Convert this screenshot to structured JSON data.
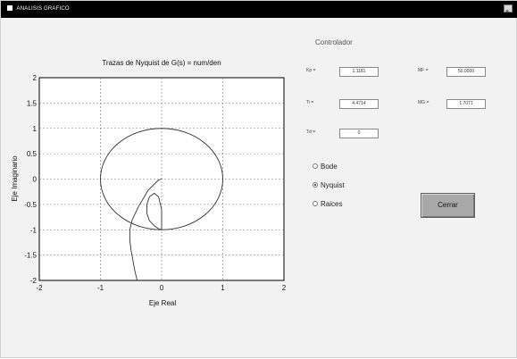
{
  "window": {
    "title": "ANALISIS GRAFICO",
    "control_icon": "window-menu-icon",
    "close_icon": "close-icon"
  },
  "plot": {
    "title": "Trazas de Nyquist de G(s) = num/den",
    "xlabel": "Eje Real",
    "ylabel": "Eje Imaginario",
    "xticks": [
      "-2",
      "-1",
      "0",
      "1",
      "2"
    ],
    "yticks": [
      "2",
      "1.5",
      "1",
      "0.5",
      "0",
      "-0.5",
      "-1",
      "-1.5",
      "-2"
    ]
  },
  "chart_data": {
    "type": "line",
    "title": "Trazas de Nyquist de G(s) = num/den",
    "xlabel": "Eje Real",
    "ylabel": "Eje Imaginario",
    "xlim": [
      -2,
      2
    ],
    "ylim": [
      -2,
      2
    ],
    "grid": true,
    "series": [
      {
        "x": [
          -0.4,
          -0.44,
          -0.47,
          -0.5,
          -0.52,
          -0.52,
          -0.48,
          -0.38,
          -0.22,
          -0.05,
          0.0
        ],
        "y": [
          -2.0,
          -1.8,
          -1.6,
          -1.4,
          -1.2,
          -1.0,
          -0.8,
          -0.55,
          -0.22,
          -0.02,
          0.0
        ]
      },
      {
        "x": [
          0.0,
          0.0,
          -0.05,
          -0.12,
          -0.2,
          -0.24,
          -0.24,
          -0.2,
          -0.12,
          -0.05,
          0.0
        ],
        "y": [
          -1.0,
          -0.6,
          -0.35,
          -0.28,
          -0.35,
          -0.5,
          -0.68,
          -0.82,
          -0.92,
          -0.98,
          -1.0
        ]
      }
    ],
    "circle": {
      "center": [
        0,
        0
      ],
      "radius": 1
    }
  },
  "controller": {
    "title": "Controlador",
    "fields": [
      {
        "label": "Kp =",
        "value": "1.1181"
      },
      {
        "label": "MF =",
        "value": "50.0000"
      },
      {
        "label": "Ti =",
        "value": "4.4714"
      },
      {
        "label": "MG =",
        "value": "1.7071"
      },
      {
        "label": "Td =",
        "value": "0"
      }
    ]
  },
  "options": {
    "bode": "Bode",
    "nyquist": "Nyquist",
    "raices": "Raices",
    "selected": "Nyquist"
  },
  "buttons": {
    "cerrar": "Cerrar"
  }
}
